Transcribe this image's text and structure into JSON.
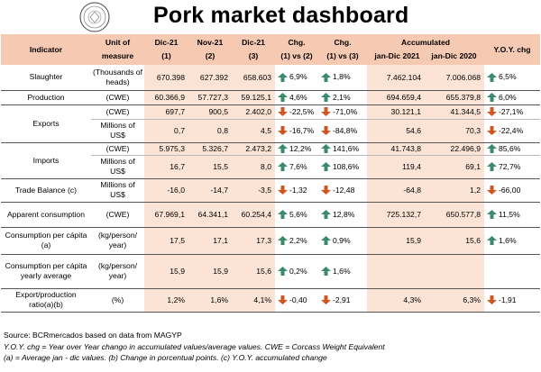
{
  "title": "Pork market dashboard",
  "header": {
    "indicator": "Indicator",
    "unit_line1": "Unit of",
    "unit_line2": "measure",
    "c1a": "Dic-21",
    "c1b": "(1)",
    "c2a": "Nov-21",
    "c2b": "(2)",
    "c3a": "Dic-21",
    "c3b": "(3)",
    "chg12a": "Chg.",
    "chg12b": "(1) vs (2)",
    "chg13a": "Chg.",
    "chg13b": "(1) vs (3)",
    "acc": "Accumulated",
    "acc1": "jan-Dic 2021",
    "acc2": "jan-Dic 2020",
    "yoy": "Y.O.Y. chg"
  },
  "rows": {
    "slaughter": {
      "indicator": "Slaughter",
      "unit": "(Thousands of heads)",
      "v1": "670.398",
      "v2": "627.392",
      "v3": "658.603",
      "chg12": "6,9%",
      "chg13": "1,8%",
      "acc21": "7.462.104",
      "acc20": "7.006.068",
      "yoy": "6,5%"
    },
    "production": {
      "indicator": "Production",
      "unit": "(CWE)",
      "v1": "60.366,9",
      "v2": "57.727,3",
      "v3": "59.125,1",
      "chg12": "4,6%",
      "chg13": "2,1%",
      "acc21": "694.659,4",
      "acc20": "655.379,8",
      "yoy": "6,0%"
    },
    "exports_cwe": {
      "indicator": "Exports",
      "unit": "(CWE)",
      "v1": "697,7",
      "v2": "900,5",
      "v3": "2.402,0",
      "chg12": "-22,5%",
      "chg13": "-71,0%",
      "acc21": "30.121,1",
      "acc20": "41.344,5",
      "yoy": "-27,1%"
    },
    "exports_usd": {
      "unit": "Millions of US$",
      "v1": "0,7",
      "v2": "0,8",
      "v3": "4,5",
      "chg12": "-16,7%",
      "chg13": "-84,8%",
      "acc21": "54,6",
      "acc20": "70,3",
      "yoy": "-22,4%"
    },
    "imports_cwe": {
      "indicator": "Imports",
      "unit": "(CWE)",
      "v1": "5.975,3",
      "v2": "5.326,7",
      "v3": "2.473,2",
      "chg12": "12,2%",
      "chg13": "141,6%",
      "acc21": "41.743,8",
      "acc20": "22.496,9",
      "yoy": "85,6%"
    },
    "imports_usd": {
      "unit": "Millions of US$",
      "v1": "16,7",
      "v2": "15,5",
      "v3": "8,0",
      "chg12": "7,6%",
      "chg13": "108,6%",
      "acc21": "119,4",
      "acc20": "69,1",
      "yoy": "72,7%"
    },
    "trade": {
      "indicator": "Trade Balance (c)",
      "unit": "Millions of US$",
      "v1": "-16,0",
      "v2": "-14,7",
      "v3": "-3,5",
      "chg12": "-1,32",
      "chg13": "-12,48",
      "acc21": "-64,8",
      "acc20": "1,2",
      "yoy": "-66,00"
    },
    "apparent": {
      "indicator": "Apparent consumption",
      "unit": "(CWE)",
      "v1": "67.969,1",
      "v2": "64.341,1",
      "v3": "60.254,4",
      "chg12": "5,6%",
      "chg13": "12,8%",
      "acc21": "725.132,7",
      "acc20": "650.577,8",
      "yoy": "11,5%"
    },
    "percapita": {
      "indicator": "Consumption per cápita (a)",
      "unit": "(kg/person/ year)",
      "v1": "17,5",
      "v2": "17,1",
      "v3": "17,3",
      "chg12": "2,2%",
      "chg13": "0,9%",
      "acc21": "15,9",
      "acc20": "15,6",
      "yoy": "1,6%"
    },
    "percapita_avg": {
      "indicator": "Consumption per cápita yearly average",
      "unit": "(kg/person/ year)",
      "v1": "15,9",
      "v2": "15,9",
      "v3": "15,6",
      "chg12": "0,2%",
      "chg13": "1,6%",
      "acc21": "",
      "acc20": "",
      "yoy": ""
    },
    "ratio": {
      "indicator": "Export/production ratio(a)(b)",
      "unit": "(%)",
      "v1": "1,2%",
      "v2": "1,6%",
      "v3": "4,1%",
      "chg12": "-0,40",
      "chg13": "-2,91",
      "acc21": "4,3%",
      "acc20": "6,3%",
      "yoy": "-1,91"
    }
  },
  "footer": {
    "source": "Source: BCRmercados based on data from MAGYP",
    "note1": "Y.O.Y. chg = Year over Year chango in accumulated values/average values. CWE = Corcass Weight Equivalent",
    "note2": "(a) = Average jan - dic values. (b) Change in porcentual points. (c) Y.O.Y. accumulated change"
  },
  "colors": {
    "header_bg": "#f6c9b2",
    "tint_bg": "#fbe4d6",
    "up": "#3a8a6b",
    "down": "#d2541e"
  },
  "icons": {
    "up": "arrow-up-icon",
    "down": "arrow-down-icon",
    "logo": "seal-logo"
  }
}
